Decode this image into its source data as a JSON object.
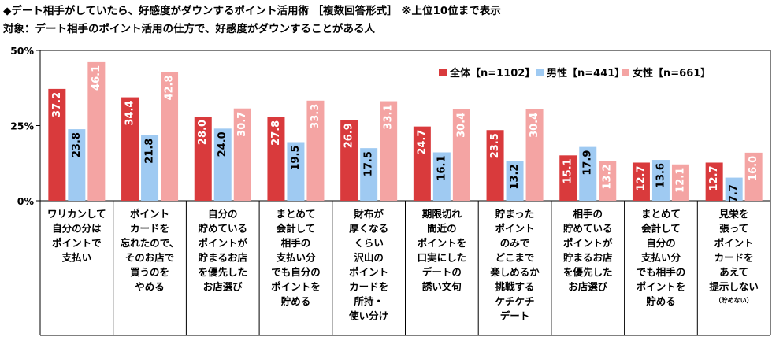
{
  "title": "◆デート相手がしていたら、好感度がダウンするポイント活用術 ［複数回答形式］ ※上位10位まで表示",
  "subtitle": "対象：デート相手のポイント活用の仕方で、好感度がダウンすることがある人",
  "chart_data": {
    "type": "bar",
    "title": "◆デート相手がしていたら、好感度がダウンするポイント活用術 ［複数回答形式］ ※上位10位まで表示",
    "subtitle": "対象：デート相手のポイント活用の仕方で、好感度がダウンすることがある人",
    "xlabel": "",
    "ylabel": "",
    "ylim": [
      0,
      50
    ],
    "yticks": [
      "0%",
      "25%",
      "50%"
    ],
    "ytick_values": [
      0,
      25,
      50
    ],
    "grid": false,
    "legend_position": "top-right",
    "categories": [
      [
        "ワリカンして",
        "自分の分は",
        "ポイントで",
        "支払い"
      ],
      [
        "ポイント",
        "カードを",
        "忘れたので、",
        "そのお店で",
        "買うのを",
        "やめる"
      ],
      [
        "自分の",
        "貯めている",
        "ポイントが",
        "貯まるお店",
        "を優先した",
        "お店選び"
      ],
      [
        "まとめて",
        "会計して",
        "相手の",
        "支払い分",
        "でも自分の",
        "ポイントを",
        "貯める"
      ],
      [
        "財布が",
        "厚くなる",
        "くらい",
        "沢山の",
        "ポイント",
        "カードを",
        "所持・",
        "使い分け"
      ],
      [
        "期限切れ",
        "間近の",
        "ポイントを",
        "口実にした",
        "デートの",
        "誘い文句"
      ],
      [
        "貯まった",
        "ポイント",
        "のみで",
        "どこまで",
        "楽しめるか",
        "挑戦する",
        "ケチケチ",
        "デート"
      ],
      [
        "相手の",
        "貯めている",
        "ポイントが",
        "貯まるお店",
        "を優先した",
        "お店選び"
      ],
      [
        "まとめて",
        "会計して",
        "自分の",
        "支払い分",
        "でも相手の",
        "ポイントを",
        "貯める"
      ],
      [
        "見栄を",
        "張って",
        "ポイント",
        "カードを",
        "あえて",
        "提示しない"
      ]
    ],
    "category_notes": [
      "",
      "",
      "",
      "",
      "",
      "",
      "",
      "",
      "",
      "（貯めない）"
    ],
    "series": [
      {
        "name": "全体【n=1102】",
        "color": "#d93a3c",
        "values": [
          37.2,
          34.4,
          28.0,
          27.8,
          26.9,
          24.7,
          23.5,
          15.1,
          12.7,
          12.7
        ],
        "labels": [
          "37.2",
          "34.4",
          "28.0",
          "27.8",
          "26.9",
          "24.7",
          "23.5",
          "15.1",
          "12.7",
          "12.7"
        ]
      },
      {
        "name": "男性【n=441】",
        "color": "#9fcaf2",
        "values": [
          23.8,
          21.8,
          24.0,
          19.5,
          17.5,
          16.1,
          13.2,
          17.9,
          13.6,
          7.7
        ],
        "labels": [
          "23.8",
          "21.8",
          "24.0",
          "19.5",
          "17.5",
          "16.1",
          "13.2",
          "17.9",
          "13.6",
          "7.7"
        ]
      },
      {
        "name": "女性【n=661】",
        "color": "#f4a4a3",
        "values": [
          46.1,
          42.8,
          30.7,
          33.3,
          33.1,
          30.4,
          30.4,
          13.2,
          12.1,
          16.0
        ],
        "labels": [
          "46.1",
          "42.8",
          "30.7",
          "33.3",
          "33.1",
          "30.4",
          "30.4",
          "13.2",
          "12.1",
          "16.0"
        ]
      }
    ]
  }
}
